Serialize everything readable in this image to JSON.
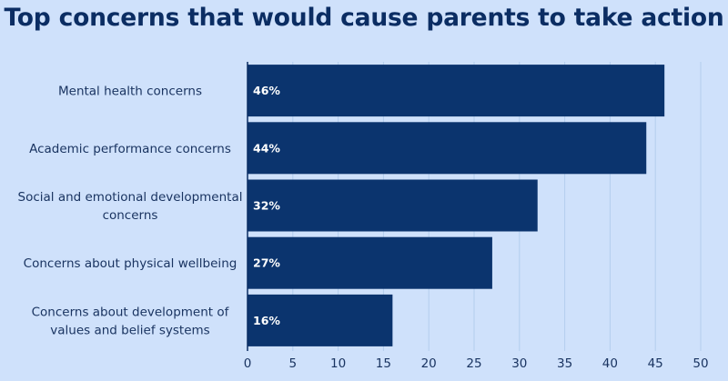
{
  "chart_data": {
    "type": "bar",
    "orientation": "horizontal",
    "title": "Top concerns that would cause parents to take action",
    "categories": [
      [
        "Mental health concerns"
      ],
      [
        "Academic performance concerns"
      ],
      [
        "Social and emotional developmental",
        "concerns"
      ],
      [
        "Concerns about physical wellbeing"
      ],
      [
        "Concerns about development of",
        "values and belief systems"
      ]
    ],
    "values": [
      46,
      44,
      32,
      27,
      16
    ],
    "data_labels": [
      "46%",
      "44%",
      "32%",
      "27%",
      "16%"
    ],
    "xlim": [
      0,
      50
    ],
    "xticks": [
      0,
      5,
      10,
      15,
      20,
      25,
      30,
      35,
      40,
      45,
      50
    ],
    "xlabel": "",
    "ylabel": "",
    "grid": "vertical",
    "bar_color": "#0b346e",
    "background_color": "#cfe1fb",
    "grid_color": "#b3cdee",
    "axis_color": "#0b2d63"
  }
}
